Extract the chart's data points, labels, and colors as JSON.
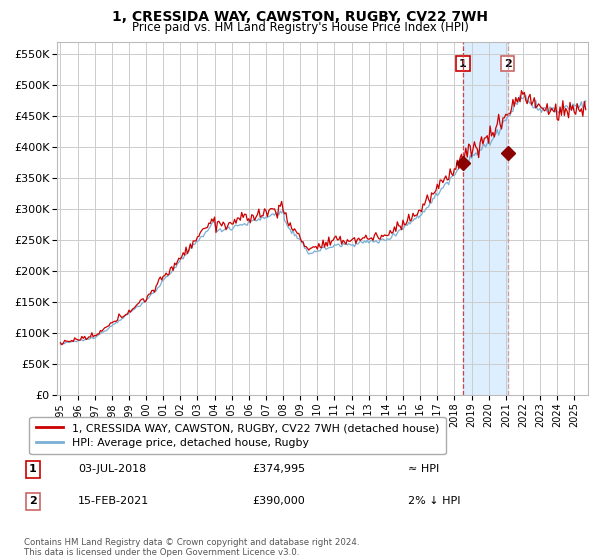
{
  "title": "1, CRESSIDA WAY, CAWSTON, RUGBY, CV22 7WH",
  "subtitle": "Price paid vs. HM Land Registry's House Price Index (HPI)",
  "legend_line1": "1, CRESSIDA WAY, CAWSTON, RUGBY, CV22 7WH (detached house)",
  "legend_line2": "HPI: Average price, detached house, Rugby",
  "footer": "Contains HM Land Registry data © Crown copyright and database right 2024.\nThis data is licensed under the Open Government Licence v3.0.",
  "sale1_date": "03-JUL-2018",
  "sale1_price": 374995,
  "sale1_label": "≈ HPI",
  "sale2_date": "15-FEB-2021",
  "sale2_price": 390000,
  "sale2_label": "2% ↓ HPI",
  "sale1_x": 2018.5,
  "sale2_x": 2021.12,
  "hpi_color": "#7ab0d4",
  "price_color": "#cc0000",
  "marker_color": "#8b0000",
  "vline_color": "#cc0000",
  "highlight_color": "#ddeeff",
  "background_color": "#ffffff",
  "grid_color": "#cccccc",
  "xstart": 1994.8,
  "xend": 2025.8,
  "ystart": 0,
  "yend": 570000,
  "box1_color": "#cc0000",
  "box2_color": "#cc6666"
}
